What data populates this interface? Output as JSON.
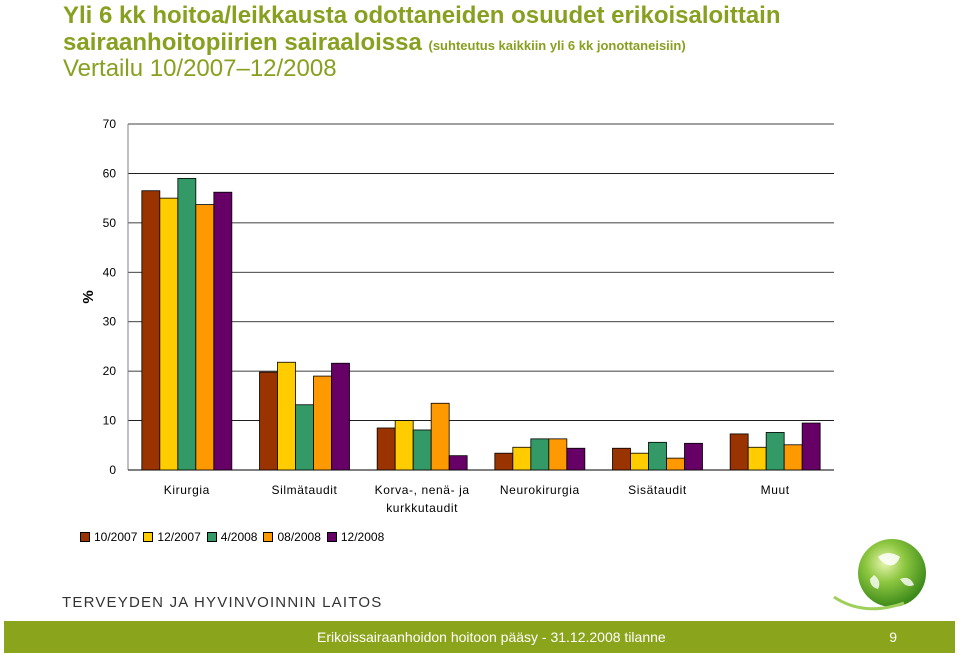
{
  "title": {
    "line1": "Yli 6 kk hoitoa/leikkausta odottaneiden osuudet erikoisaloittain",
    "line2": "sairaanhoitopiirien sairaaloissa",
    "line2_sub": "(suhteutus kaikkiin yli 6 kk jonottaneisiin)",
    "line3": "Vertailu 10/2007–12/2008"
  },
  "chart_data": {
    "type": "bar",
    "ylabel": "%",
    "ylim": [
      0,
      70
    ],
    "yticks": [
      0,
      10,
      20,
      30,
      40,
      50,
      60,
      70
    ],
    "grid": true,
    "legend_position": "bottom-left",
    "categories": [
      [
        "Kirurgia"
      ],
      [
        "Silmätaudit"
      ],
      [
        "Korva-, nenä- ja",
        "kurkkutaudit"
      ],
      [
        "Neurokirurgia"
      ],
      [
        "Sisätaudit"
      ],
      [
        "Muut"
      ]
    ],
    "series": [
      {
        "name": "10/2007",
        "color": "#993300",
        "values": [
          56.5,
          19.8,
          8.5,
          3.4,
          4.4,
          7.3
        ]
      },
      {
        "name": "12/2007",
        "color": "#ffcc00",
        "values": [
          55.0,
          21.8,
          10.0,
          4.6,
          3.4,
          4.6
        ]
      },
      {
        "name": "4/2008",
        "color": "#339966",
        "values": [
          59.0,
          13.2,
          8.1,
          6.3,
          5.6,
          7.6
        ]
      },
      {
        "name": "08/2008",
        "color": "#ff9900",
        "values": [
          53.7,
          19.0,
          13.5,
          6.3,
          2.4,
          5.1
        ]
      },
      {
        "name": "12/2008",
        "color": "#660066",
        "values": [
          56.2,
          21.6,
          2.9,
          4.4,
          5.4,
          9.5
        ]
      }
    ]
  },
  "org_name": "TERVEYDEN JA HYVINVOINNIN LAITOS",
  "footer": {
    "text": "Erikoissairaanhoidon hoitoon pääsy - 31.12.2008 tilanne",
    "page": "9"
  }
}
